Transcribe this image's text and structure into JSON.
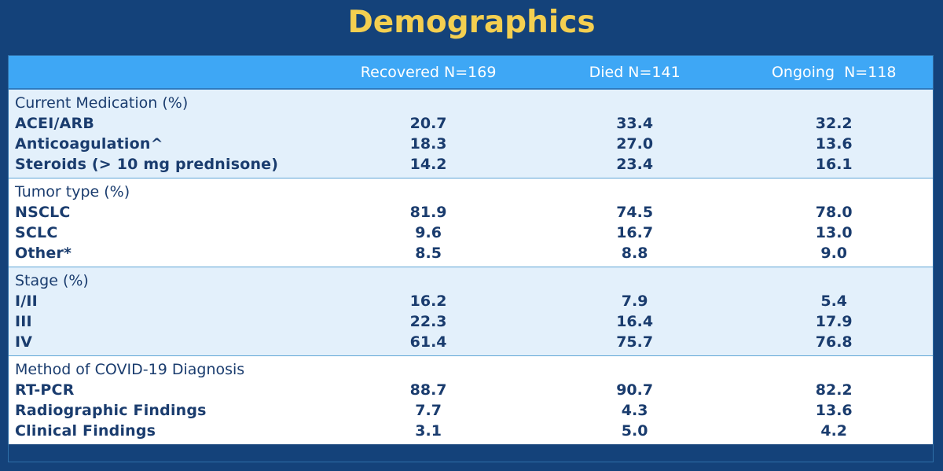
{
  "title": "Demographics",
  "columns": [
    "",
    "Recovered N=169",
    "Died N=141",
    "Ongoing  N=118"
  ],
  "sections": [
    {
      "heading": "Current Medication (%)",
      "rows": [
        {
          "label": "ACEI/ARB",
          "values": [
            "20.7",
            "33.4",
            "32.2"
          ]
        },
        {
          "label": "Anticoagulation^",
          "values": [
            "18.3",
            "27.0",
            "13.6"
          ]
        },
        {
          "label": "Steroids (> 10 mg prednisone)",
          "values": [
            "14.2",
            "23.4",
            "16.1"
          ]
        }
      ]
    },
    {
      "heading": "Tumor type (%)",
      "rows": [
        {
          "label": "NSCLC",
          "values": [
            "81.9",
            "74.5",
            "78.0"
          ]
        },
        {
          "label": "SCLC",
          "values": [
            "9.6",
            "16.7",
            "13.0"
          ]
        },
        {
          "label": "Other*",
          "values": [
            "8.5",
            "8.8",
            "9.0"
          ]
        }
      ]
    },
    {
      "heading": "Stage (%)",
      "rows": [
        {
          "label": "I/II",
          "values": [
            "16.2",
            "7.9",
            "5.4"
          ]
        },
        {
          "label": "III",
          "values": [
            "22.3",
            "16.4",
            "17.9"
          ]
        },
        {
          "label": "IV",
          "values": [
            "61.4",
            "75.7",
            "76.8"
          ]
        }
      ]
    },
    {
      "heading": "Method of COVID-19 Diagnosis",
      "rows": [
        {
          "label": "RT-PCR",
          "values": [
            "88.7",
            "90.7",
            "82.2"
          ]
        },
        {
          "label": "Radiographic Findings",
          "values": [
            "7.7",
            "4.3",
            "13.6"
          ]
        },
        {
          "label": "Clinical Findings",
          "values": [
            "3.1",
            "5.0",
            "4.2"
          ]
        }
      ]
    }
  ]
}
